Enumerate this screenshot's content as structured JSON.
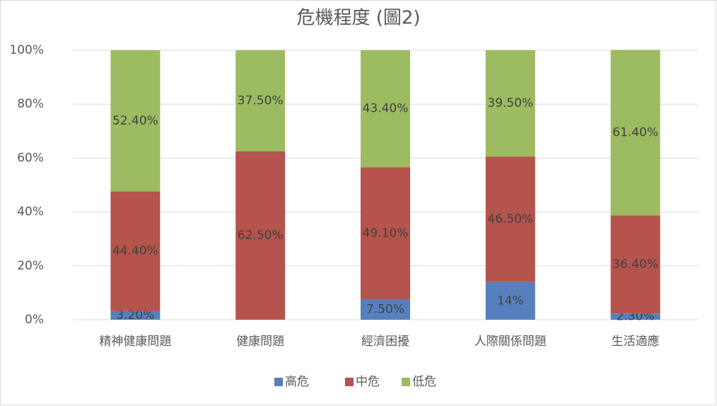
{
  "chart_data": {
    "type": "stacked_bar",
    "title": "危機程度 (圖2)",
    "categories": [
      "精神健康問題",
      "健康問題",
      "經濟困擾",
      "人際關係問題",
      "生活適應"
    ],
    "series": [
      {
        "name": "高危",
        "color": "#5680bd",
        "values": [
          3.2,
          null,
          7.5,
          14,
          2.3
        ],
        "value_labels": [
          "3.20%",
          null,
          "7.50%",
          "14%",
          "2.30%"
        ]
      },
      {
        "name": "中危",
        "color": "#b5534d",
        "values": [
          44.4,
          62.5,
          49.1,
          46.5,
          36.4
        ],
        "value_labels": [
          "44.40%",
          "62.50%",
          "49.10%",
          "46.50%",
          "36.40%"
        ]
      },
      {
        "name": "低危",
        "color": "#9dbb61",
        "values": [
          52.4,
          37.5,
          43.4,
          39.5,
          61.4
        ],
        "value_labels": [
          "52.40%",
          "37.50%",
          "43.40%",
          "39.50%",
          "61.40%"
        ]
      }
    ],
    "ylim": [
      0,
      100
    ],
    "yticks": [
      {
        "value": 0,
        "label": "0%"
      },
      {
        "value": 20,
        "label": "20%"
      },
      {
        "value": 40,
        "label": "40%"
      },
      {
        "value": 60,
        "label": "60%"
      },
      {
        "value": 80,
        "label": "80%"
      },
      {
        "value": 100,
        "label": "100%"
      }
    ],
    "grid": true
  }
}
